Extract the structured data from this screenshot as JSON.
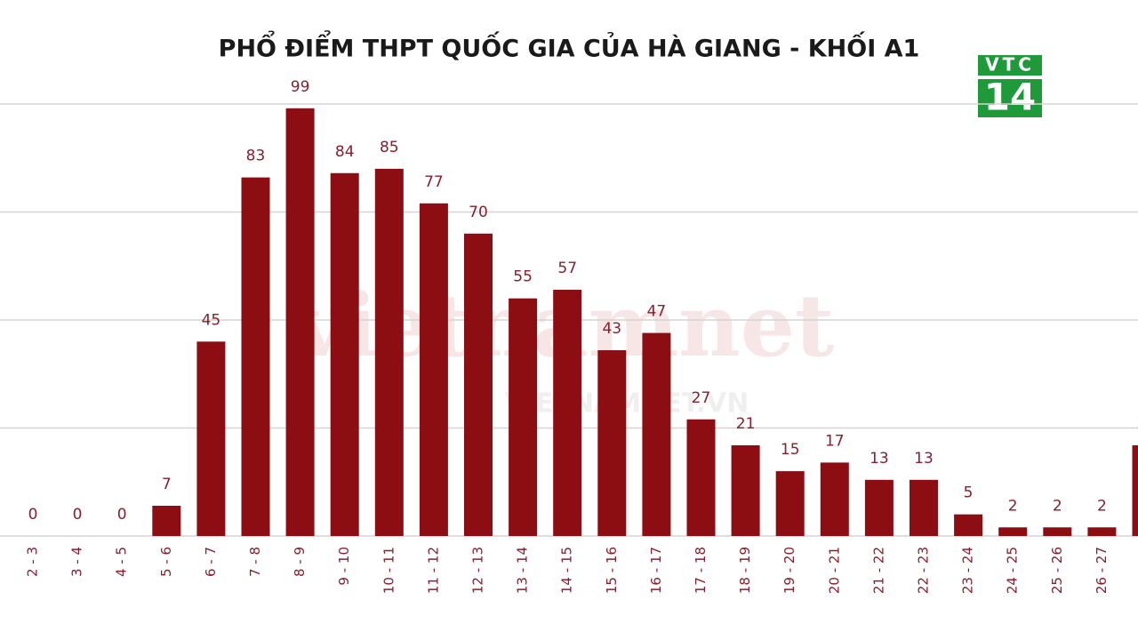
{
  "chart_data": {
    "type": "bar",
    "title": "PHỔ ĐIỂM THPT QUỐC GIA CỦA HÀ GIANG - KHỐI A1",
    "categories": [
      "2 - 3",
      "3 - 4",
      "4 - 5",
      "5 - 6",
      "6 - 7",
      "7 - 8",
      "8 - 9",
      "9 - 10",
      "10 - 11",
      "11 - 12",
      "12 - 13",
      "13 - 14",
      "14 - 15",
      "15 - 16",
      "16 - 17",
      "17 - 18",
      "18 - 19",
      "19 - 20",
      "20 - 21",
      "21 - 22",
      "22 - 23",
      "23 - 24",
      "24 - 25",
      "25 - 26",
      "26 - 27",
      null
    ],
    "values": [
      0,
      0,
      0,
      7,
      45,
      83,
      99,
      84,
      85,
      77,
      70,
      55,
      57,
      43,
      47,
      27,
      21,
      15,
      17,
      13,
      13,
      5,
      2,
      2,
      2,
      21
    ],
    "color": "#8c0d12",
    "ylim": [
      0,
      100
    ],
    "yticks": [
      0,
      25,
      50,
      75,
      100
    ],
    "grid": true,
    "logo": {
      "top": "VTC",
      "bottom": "14"
    },
    "watermark": [
      "vietnamnet",
      "VIETNAMNET.VN"
    ]
  }
}
